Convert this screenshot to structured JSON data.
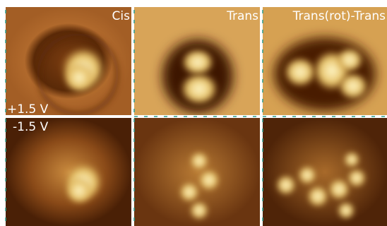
{
  "figure": {
    "columns": [
      "Cis",
      "Trans",
      "Trans(rot)-Trans"
    ],
    "rows": [
      "+1.5 V",
      "-1.5 V"
    ]
  }
}
